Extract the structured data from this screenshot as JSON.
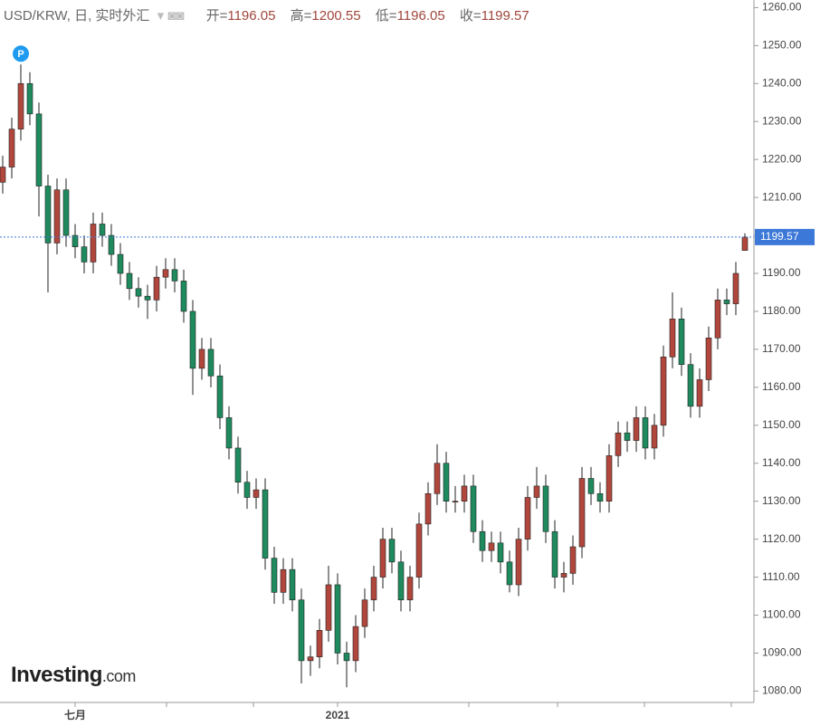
{
  "chart_data": {
    "type": "candlestick",
    "header": {
      "symbol": "USD/KRW, 日, 实时外汇",
      "open_label": "开=",
      "high_label": "高=",
      "low_label": "低=",
      "close_label": "收="
    },
    "marker": "P",
    "brand": [
      "Investing",
      ".com"
    ],
    "categories": [
      null,
      null,
      null,
      null,
      null,
      null,
      null,
      null,
      "七月",
      null,
      null,
      null,
      null,
      null,
      null,
      null,
      null,
      null,
      null,
      null,
      null,
      null,
      null,
      null,
      null,
      null,
      null,
      null,
      null,
      null,
      null,
      null,
      null,
      null,
      null,
      null,
      null,
      "2021",
      null,
      null,
      null,
      null,
      null,
      null,
      null,
      null,
      null,
      null,
      null,
      null,
      null,
      null,
      null,
      null,
      null,
      null,
      null,
      null,
      null,
      null,
      null,
      null,
      null,
      null,
      null,
      null,
      null,
      null,
      null,
      null,
      null,
      null,
      null,
      null,
      null,
      null,
      null,
      null,
      null,
      null,
      null,
      null,
      null
    ],
    "open": [
      1214,
      1218,
      1228,
      1240,
      1232,
      1213,
      1198,
      1212,
      1200,
      1197,
      1193,
      1203,
      1200,
      1195,
      1190,
      1186,
      1184,
      1183,
      1189,
      1191,
      1188,
      1180,
      1165,
      1170,
      1163,
      1152,
      1144,
      1135,
      1131,
      1133,
      1115,
      1106,
      1112,
      1104,
      1088,
      1089,
      1096,
      1108,
      1090,
      1088,
      1097,
      1104,
      1110,
      1120,
      1114,
      1104,
      1110,
      1124,
      1132,
      1140,
      1130,
      1130,
      1134,
      1122,
      1117,
      1119,
      1114,
      1108,
      1120,
      1131,
      1134,
      1122,
      1110,
      1111,
      1118,
      1136,
      1132,
      1130,
      1142,
      1148,
      1146,
      1152,
      1144,
      1150,
      1168,
      1178,
      1166,
      1155,
      1162,
      1173,
      1183,
      1182,
      1196.05
    ],
    "high": [
      1221,
      1231,
      1245,
      1243,
      1235,
      1216,
      1215,
      1215,
      1203,
      1200,
      1206,
      1206,
      1203,
      1198,
      1193,
      1189,
      1187,
      1192,
      1194,
      1194,
      1191,
      1183,
      1173,
      1173,
      1166,
      1155,
      1147,
      1138,
      1136,
      1136,
      1118,
      1115,
      1115,
      1107,
      1092,
      1099,
      1113,
      1111,
      1093,
      1100,
      1107,
      1113,
      1123,
      1123,
      1117,
      1113,
      1127,
      1135,
      1145,
      1143,
      1134,
      1137,
      1137,
      1125,
      1122,
      1122,
      1117,
      1123,
      1134,
      1139,
      1137,
      1125,
      1114,
      1121,
      1139,
      1139,
      1135,
      1145,
      1151,
      1151,
      1155,
      1155,
      1153,
      1171,
      1185,
      1181,
      1169,
      1165,
      1176,
      1186,
      1186,
      1193,
      1200.55
    ],
    "low": [
      1211,
      1215,
      1225,
      1229,
      1205,
      1185,
      1195,
      1197,
      1194,
      1190,
      1190,
      1197,
      1192,
      1187,
      1183,
      1181,
      1178,
      1180,
      1186,
      1185,
      1177,
      1158,
      1162,
      1160,
      1149,
      1141,
      1132,
      1128,
      1128,
      1112,
      1103,
      1103,
      1101,
      1082,
      1084,
      1086,
      1093,
      1087,
      1081,
      1085,
      1094,
      1101,
      1107,
      1111,
      1101,
      1101,
      1107,
      1121,
      1129,
      1127,
      1127,
      1127,
      1119,
      1114,
      1114,
      1111,
      1106,
      1105,
      1117,
      1128,
      1119,
      1107,
      1106,
      1108,
      1115,
      1129,
      1127,
      1127,
      1139,
      1143,
      1143,
      1141,
      1141,
      1147,
      1165,
      1163,
      1152,
      1152,
      1159,
      1170,
      1179,
      1179,
      1196.05
    ],
    "close": [
      1218,
      1228,
      1240,
      1232,
      1213,
      1198,
      1212,
      1200,
      1197,
      1193,
      1203,
      1200,
      1195,
      1190,
      1186,
      1184,
      1183,
      1189,
      1191,
      1188,
      1180,
      1165,
      1170,
      1163,
      1152,
      1144,
      1135,
      1131,
      1133,
      1115,
      1106,
      1112,
      1104,
      1088,
      1089,
      1096,
      1108,
      1090,
      1088,
      1097,
      1104,
      1110,
      1120,
      1114,
      1104,
      1110,
      1124,
      1132,
      1140,
      1130,
      1130,
      1134,
      1122,
      1117,
      1119,
      1114,
      1108,
      1120,
      1131,
      1134,
      1122,
      1110,
      1111,
      1118,
      1136,
      1132,
      1130,
      1142,
      1148,
      1146,
      1152,
      1144,
      1150,
      1168,
      1178,
      1166,
      1155,
      1162,
      1173,
      1183,
      1182,
      1190,
      1199.57
    ],
    "up_color": "#b0463c",
    "down_color": "#1e8a5e",
    "last_color": "#3c78d8",
    "ylim": [
      1077,
      1262
    ],
    "yticks": [
      {
        "value": 1080,
        "label": "1080.00"
      },
      {
        "value": 1090,
        "label": "1090.00"
      },
      {
        "value": 1100,
        "label": "1100.00"
      },
      {
        "value": 1110,
        "label": "1110.00"
      },
      {
        "value": 1120,
        "label": "1120.00"
      },
      {
        "value": 1130,
        "label": "1130.00"
      },
      {
        "value": 1140,
        "label": "1140.00"
      },
      {
        "value": 1150,
        "label": "1150.00"
      },
      {
        "value": 1160,
        "label": "1160.00"
      },
      {
        "value": 1170,
        "label": "1170.00"
      },
      {
        "value": 1180,
        "label": "1180.00"
      },
      {
        "value": 1190,
        "label": "1190.00"
      },
      {
        "value": 1200,
        "label": "1200.00"
      },
      {
        "value": 1210,
        "label": "1210.00"
      },
      {
        "value": 1220,
        "label": "1220.00"
      },
      {
        "value": 1230,
        "label": "1230.00"
      },
      {
        "value": 1240,
        "label": "1240.00"
      },
      {
        "value": 1250,
        "label": "1250.00"
      },
      {
        "value": 1260,
        "label": "1260.00"
      }
    ]
  }
}
